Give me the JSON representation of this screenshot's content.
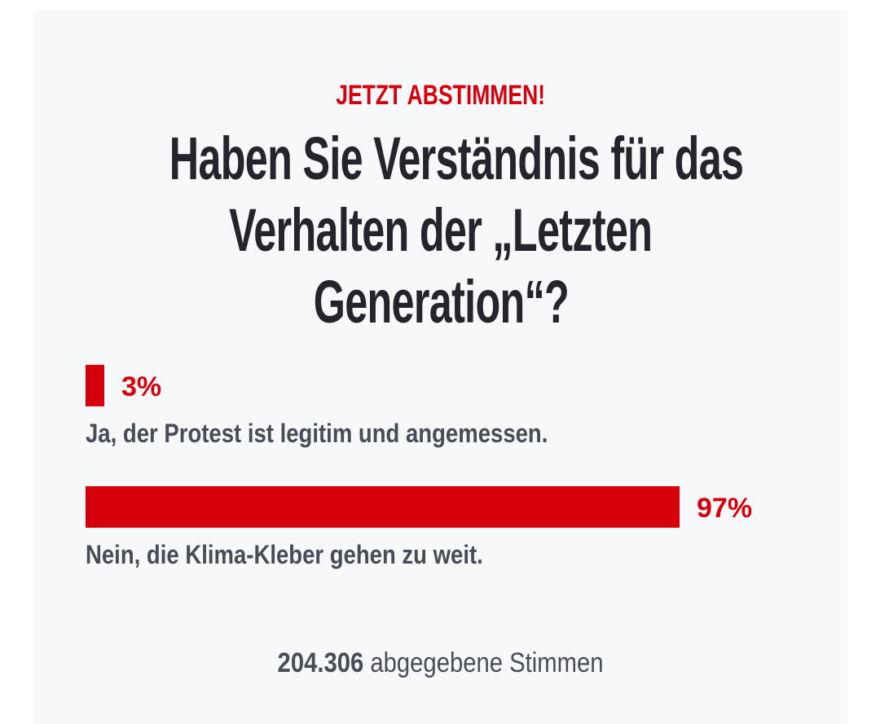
{
  "poll": {
    "kicker": "JETZT ABSTIMMEN!",
    "title_lines": [
      "Haben Sie Verständnis für das",
      "Verhalten der „Letzten",
      "Generation“?"
    ],
    "options": [
      {
        "percent_label": "3%",
        "percent": 3,
        "label": "Ja, der Protest ist legitim und angemessen."
      },
      {
        "percent_label": "97%",
        "percent": 97,
        "label": "Nein, die Klima-Kleber gehen zu weit."
      }
    ],
    "votes_count": "204.306",
    "votes_label": "abgegebene Stimmen"
  },
  "colors": {
    "accent": "#d6000d",
    "title": "#22252b",
    "text": "#464d57",
    "card": "#f7f8fa"
  }
}
